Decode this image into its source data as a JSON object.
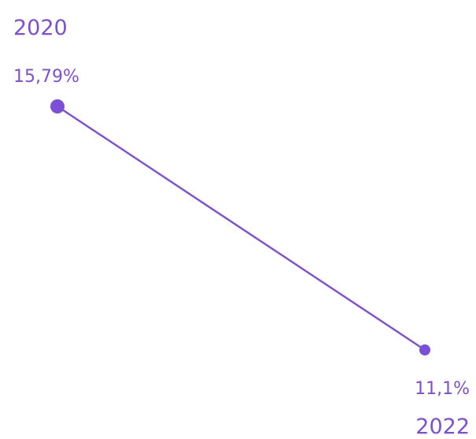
{
  "chart_data": {
    "type": "line",
    "title": "",
    "xlabel": "",
    "ylabel": "",
    "x": [
      "2020",
      "2022"
    ],
    "series": [
      {
        "values": [
          15.79,
          11.1
        ],
        "value_labels": [
          "15,79%",
          "11,1%"
        ]
      }
    ],
    "ylim": [
      11.1,
      15.79
    ],
    "grid": false,
    "legend": "none"
  },
  "colors": {
    "accent": "#7B4FD8"
  }
}
